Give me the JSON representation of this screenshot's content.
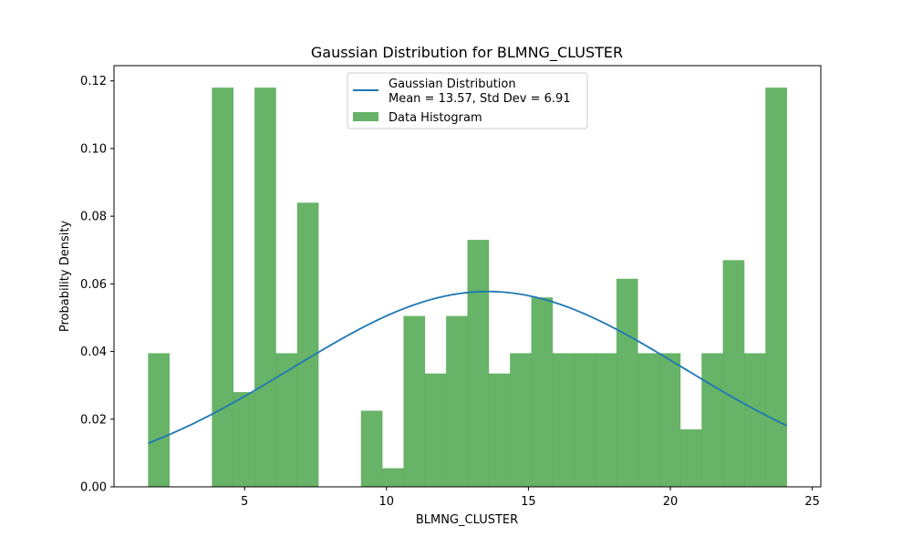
{
  "chart_data": {
    "type": "bar",
    "title": "Gaussian Distribution for BLMNG_CLUSTER",
    "xlabel": "BLMNG_CLUSTER",
    "ylabel": "Probability Density",
    "xlim": [
      0.4,
      25.3
    ],
    "ylim": [
      0,
      0.1245
    ],
    "x_ticks": [
      5,
      10,
      15,
      20,
      25
    ],
    "y_ticks": [
      0.0,
      0.02,
      0.04,
      0.06,
      0.08,
      0.1,
      0.12
    ],
    "grid": false,
    "legend_position": "upper center",
    "histogram": {
      "name": "Data Histogram",
      "color": "#4ca64c",
      "opacity": 0.85,
      "bin_edges": [
        1.6,
        2.35,
        3.1,
        3.85,
        4.6,
        5.35,
        6.1,
        6.85,
        7.6,
        8.35,
        9.1,
        9.85,
        10.6,
        11.35,
        12.1,
        12.85,
        13.6,
        14.35,
        15.1,
        15.85,
        16.6,
        17.35,
        18.1,
        18.85,
        19.6,
        20.35,
        21.1,
        21.85,
        22.6,
        23.35,
        24.1
      ],
      "densities": [
        0.0395,
        0.0,
        0.0,
        0.118,
        0.028,
        0.118,
        0.0395,
        0.084,
        0.0,
        0.0,
        0.0225,
        0.0055,
        0.0505,
        0.0335,
        0.0505,
        0.073,
        0.0335,
        0.0395,
        0.056,
        0.0395,
        0.0395,
        0.0395,
        0.0615,
        0.0395,
        0.0395,
        0.017,
        0.0395,
        0.067,
        0.0395,
        0.118
      ]
    },
    "series": [
      {
        "name": "Gaussian Distribution\nMean = 13.57, Std Dev = 6.91",
        "type": "line",
        "mean": 13.57,
        "std": 6.91,
        "x_range": [
          1.6,
          24.1
        ],
        "color": "#1f77b4"
      }
    ],
    "legend": {
      "line_label_1": "Gaussian Distribution",
      "line_label_2": "Mean = 13.57, Std Dev = 6.91",
      "hist_label": "Data Histogram"
    }
  }
}
